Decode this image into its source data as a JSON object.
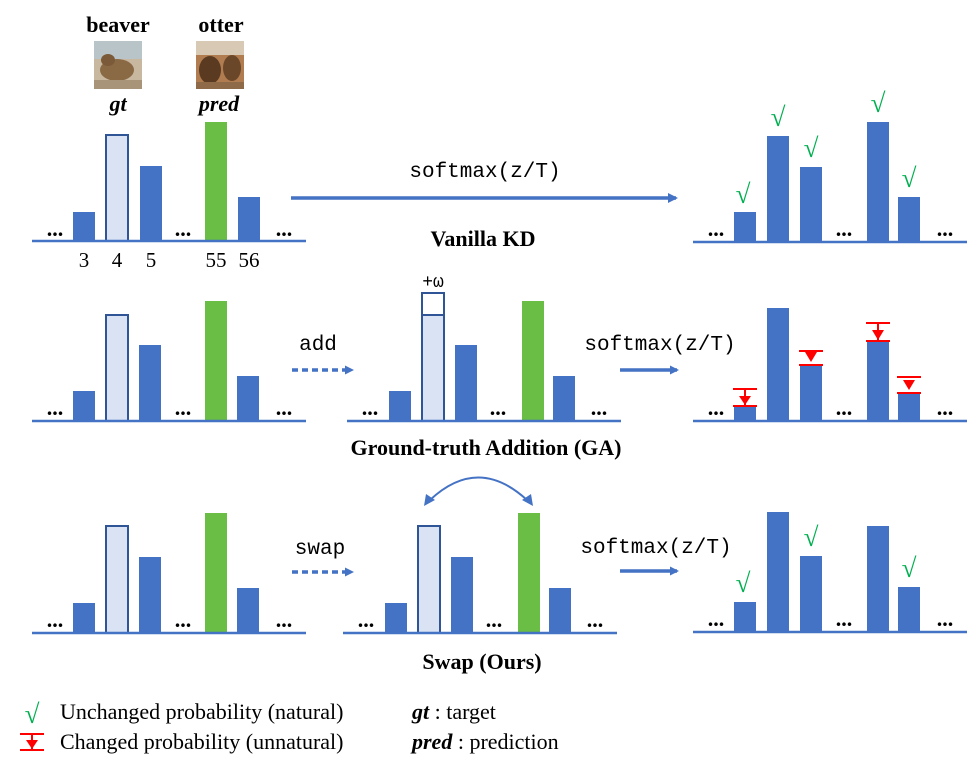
{
  "colors": {
    "bar": "#4472C4",
    "gt_fill": "#DAE3F3",
    "pred": "#6ABD45",
    "check": "#00B050",
    "marker": "#FF0000"
  },
  "header": {
    "gt_class": "beaver",
    "pred_class": "otter",
    "gt_label": "gt",
    "pred_label": "pred",
    "gt_image_icon": "beaver-photo-icon",
    "pred_image_icon": "otter-photo-icon"
  },
  "index_labels": [
    "3",
    "4",
    "5",
    "55",
    "56"
  ],
  "ellipsis": "...",
  "check": "√",
  "ops": {
    "softmax": "softmax(z/T)",
    "add": "add",
    "swap": "swap",
    "omega": "+ω"
  },
  "sections": {
    "vanilla": "Vanilla KD",
    "ga": "Ground-truth Addition (GA)",
    "swap": "Swap (Ours)"
  },
  "legend": {
    "unchanged": "Unchanged probability (natural)",
    "changed": "Changed probability (unnatural)",
    "gt_key": "gt",
    "gt_desc": " : target",
    "pred_key": "pred",
    "pred_desc": " : prediction"
  }
}
